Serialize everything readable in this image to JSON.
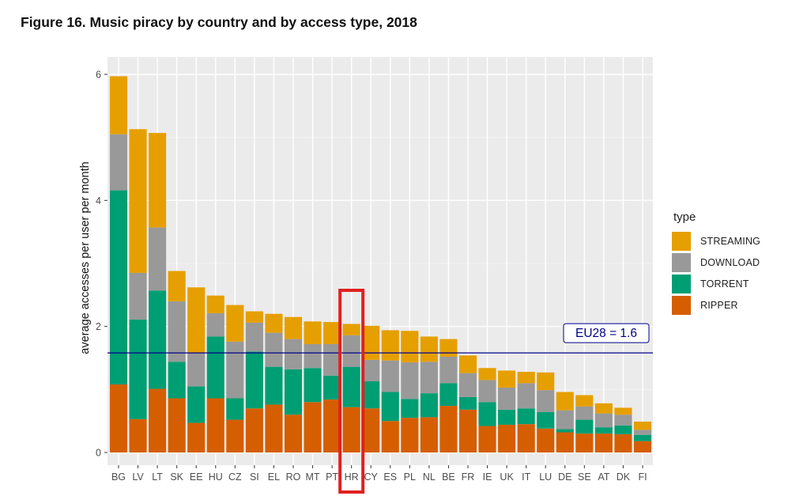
{
  "figure": {
    "title": "Figure 16. Music piracy by country and by access type, 2018"
  },
  "chart_data": {
    "type": "bar",
    "stacked": true,
    "ylabel": "average accesses per user per month",
    "xlabel": "",
    "ylim": [
      0,
      6.3
    ],
    "yticks": [
      "0",
      "2",
      "4",
      "6"
    ],
    "grid": true,
    "legend_title": "type",
    "legend_position": "right",
    "categories": [
      "BG",
      "LV",
      "LT",
      "SK",
      "EE",
      "HU",
      "CZ",
      "SI",
      "EL",
      "RO",
      "MT",
      "PT",
      "HR",
      "CY",
      "ES",
      "PL",
      "NL",
      "BE",
      "FR",
      "IE",
      "UK",
      "IT",
      "LU",
      "DE",
      "SE",
      "AT",
      "DK",
      "FI"
    ],
    "series": [
      {
        "name": "RIPPER",
        "color": "#D55E00",
        "values": [
          1.08,
          0.53,
          1.01,
          0.86,
          0.47,
          0.86,
          0.52,
          0.7,
          0.76,
          0.6,
          0.8,
          0.84,
          0.72,
          0.7,
          0.5,
          0.55,
          0.56,
          0.74,
          0.68,
          0.42,
          0.44,
          0.45,
          0.38,
          0.32,
          0.3,
          0.3,
          0.29,
          0.18
        ]
      },
      {
        "name": "TORRENT",
        "color": "#009E73",
        "values": [
          3.08,
          1.58,
          1.56,
          0.58,
          0.58,
          0.98,
          0.34,
          0.9,
          0.6,
          0.72,
          0.54,
          0.38,
          0.64,
          0.43,
          0.46,
          0.3,
          0.38,
          0.36,
          0.2,
          0.38,
          0.24,
          0.25,
          0.26,
          0.05,
          0.22,
          0.1,
          0.14,
          0.1
        ]
      },
      {
        "name": "DOWNLOAD",
        "color": "#999999",
        "values": [
          0.89,
          0.74,
          1.0,
          0.96,
          0.53,
          0.37,
          0.9,
          0.46,
          0.54,
          0.48,
          0.38,
          0.5,
          0.5,
          0.34,
          0.5,
          0.58,
          0.5,
          0.42,
          0.38,
          0.35,
          0.35,
          0.4,
          0.35,
          0.3,
          0.21,
          0.22,
          0.17,
          0.08
        ]
      },
      {
        "name": "STREAMING",
        "color": "#E69F00",
        "values": [
          0.92,
          2.28,
          1.5,
          0.48,
          1.04,
          0.28,
          0.58,
          0.18,
          0.3,
          0.35,
          0.36,
          0.35,
          0.18,
          0.54,
          0.48,
          0.5,
          0.4,
          0.28,
          0.28,
          0.19,
          0.27,
          0.18,
          0.28,
          0.29,
          0.18,
          0.16,
          0.11,
          0.13
        ]
      }
    ],
    "reference_line": {
      "label": "EU28 = 1.6",
      "value": 1.58,
      "color": "#00008B"
    },
    "highlight": {
      "category": "HR",
      "color": "#E02020"
    }
  }
}
